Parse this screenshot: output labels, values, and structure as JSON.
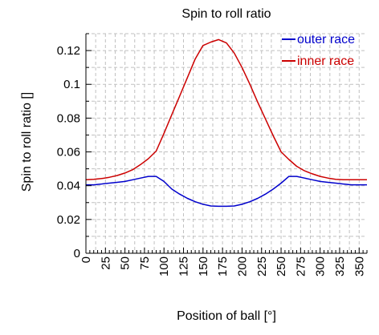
{
  "chart_data": {
    "type": "line",
    "title": "Spin to roll ratio",
    "xlabel": "Position of ball [°]",
    "ylabel": "Spin to roll ratio []",
    "xlim": [
      0,
      360
    ],
    "ylim": [
      0,
      0.13
    ],
    "x_ticks": [
      0,
      25,
      50,
      75,
      100,
      125,
      150,
      175,
      200,
      225,
      250,
      275,
      300,
      325,
      350
    ],
    "x_tick_labels": [
      "0",
      "25",
      "50",
      "75",
      "100",
      "125",
      "150",
      "175",
      "200",
      "225",
      "250",
      "275",
      "300",
      "325",
      "350"
    ],
    "y_ticks": [
      0,
      0.02,
      0.04,
      0.06,
      0.08,
      0.1,
      0.12
    ],
    "y_tick_labels": [
      "0",
      "0.02",
      "0.04",
      "0.06",
      "0.08",
      "0.1",
      "0.12"
    ],
    "grid": true,
    "legend_position": "top-right",
    "series": [
      {
        "name": "outer race",
        "color": "#0000cc",
        "x": [
          0,
          10,
          20,
          30,
          40,
          50,
          60,
          70,
          80,
          90,
          100,
          110,
          120,
          130,
          140,
          150,
          160,
          170,
          180,
          190,
          200,
          210,
          220,
          230,
          240,
          250,
          260,
          270,
          280,
          290,
          300,
          310,
          320,
          330,
          340,
          350,
          360
        ],
        "values": [
          0.0405,
          0.0405,
          0.041,
          0.0415,
          0.042,
          0.0425,
          0.0435,
          0.0445,
          0.0455,
          0.0455,
          0.0425,
          0.038,
          0.035,
          0.0325,
          0.0305,
          0.029,
          0.028,
          0.0278,
          0.0278,
          0.028,
          0.029,
          0.0305,
          0.0325,
          0.035,
          0.038,
          0.0415,
          0.0455,
          0.0455,
          0.0445,
          0.0435,
          0.0425,
          0.042,
          0.0415,
          0.041,
          0.0405,
          0.0405,
          0.0405
        ]
      },
      {
        "name": "inner race",
        "color": "#cc0000",
        "x": [
          0,
          10,
          20,
          30,
          40,
          50,
          60,
          70,
          80,
          90,
          100,
          110,
          120,
          130,
          140,
          150,
          160,
          170,
          180,
          190,
          200,
          210,
          220,
          230,
          240,
          250,
          260,
          270,
          280,
          290,
          300,
          310,
          320,
          330,
          340,
          350,
          360
        ],
        "values": [
          0.0435,
          0.0438,
          0.0442,
          0.045,
          0.046,
          0.0475,
          0.0495,
          0.0525,
          0.056,
          0.0605,
          0.071,
          0.082,
          0.093,
          0.104,
          0.115,
          0.123,
          0.125,
          0.1265,
          0.1245,
          0.1185,
          0.11,
          0.1,
          0.0895,
          0.0795,
          0.0695,
          0.06,
          0.0555,
          0.0515,
          0.0488,
          0.047,
          0.0455,
          0.0445,
          0.0438,
          0.0435,
          0.0435,
          0.0435,
          0.0435
        ]
      }
    ]
  }
}
